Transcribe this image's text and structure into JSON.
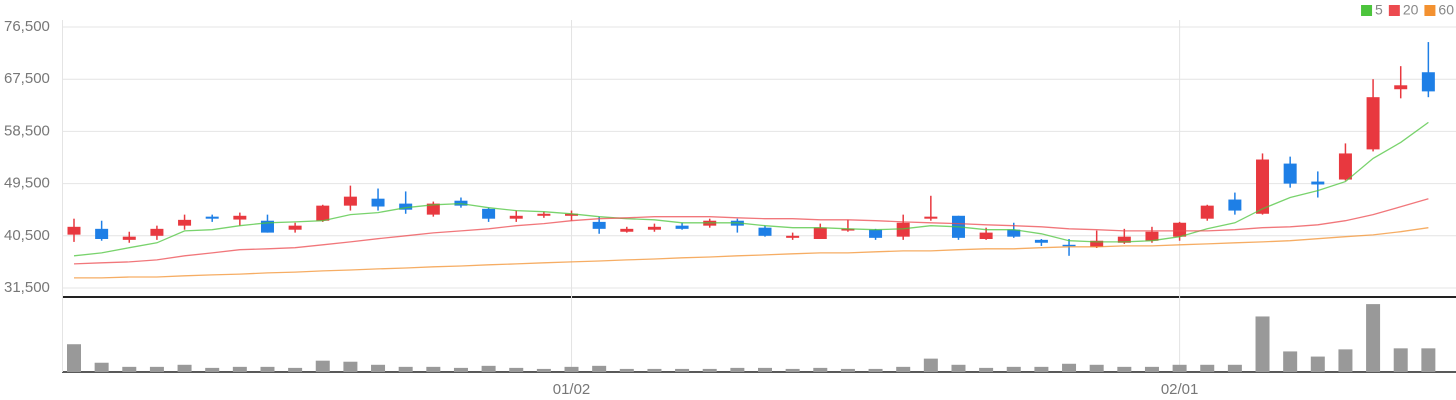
{
  "chart_data": {
    "type": "candlestick",
    "categories": [
      null,
      null,
      null,
      null,
      null,
      null,
      null,
      null,
      null,
      null,
      null,
      null,
      null,
      null,
      null,
      null,
      null,
      null,
      "01/02",
      null,
      null,
      null,
      null,
      null,
      null,
      null,
      null,
      null,
      null,
      null,
      null,
      null,
      null,
      null,
      null,
      null,
      null,
      null,
      null,
      null,
      "02/01",
      null,
      null,
      null,
      null,
      null,
      null,
      null,
      null,
      null
    ],
    "open": [
      40700,
      41700,
      39800,
      40500,
      42250,
      43800,
      43300,
      43100,
      41550,
      43100,
      45700,
      46900,
      46050,
      44150,
      46550,
      45150,
      43450,
      43950,
      43950,
      42900,
      41200,
      41550,
      42250,
      42250,
      43100,
      41900,
      40150,
      39950,
      41400,
      41550,
      40350,
      43450,
      43950,
      39950,
      41550,
      39800,
      38950,
      38600,
      39300,
      39650,
      40350,
      43450,
      46750,
      44300,
      52950,
      49850,
      50200,
      55400,
      65770,
      68700
    ],
    "high": [
      43450,
      43100,
      41200,
      42250,
      44150,
      44150,
      44500,
      44150,
      42750,
      45850,
      49150,
      48650,
      48150,
      46400,
      47100,
      45350,
      44850,
      44650,
      44850,
      43800,
      42050,
      42600,
      42750,
      43450,
      43450,
      42250,
      41050,
      42600,
      43250,
      41700,
      44150,
      47400,
      43950,
      41900,
      42750,
      39950,
      39950,
      41400,
      41700,
      42050,
      42900,
      45850,
      47950,
      54700,
      54150,
      51600,
      56430,
      67500,
      69750,
      73900
    ],
    "low": [
      39450,
      39650,
      39300,
      39800,
      41550,
      42900,
      42250,
      41050,
      41050,
      42900,
      44850,
      44850,
      44300,
      43800,
      45350,
      42900,
      42900,
      43600,
      43100,
      40850,
      41050,
      41200,
      41550,
      41900,
      41050,
      40350,
      39800,
      39950,
      41200,
      39800,
      39800,
      43100,
      39800,
      39800,
      40150,
      38750,
      37050,
      38400,
      39100,
      39300,
      39650,
      43100,
      44150,
      44150,
      48800,
      47100,
      50020,
      55050,
      64200,
      64400
    ],
    "close": [
      42050,
      39950,
      40350,
      41700,
      43250,
      43450,
      43950,
      41050,
      42250,
      45700,
      47250,
      45550,
      45000,
      46050,
      45700,
      43450,
      43950,
      44300,
      44300,
      41700,
      41700,
      42050,
      41700,
      43100,
      42250,
      40500,
      40500,
      41900,
      41700,
      40150,
      42750,
      43800,
      40150,
      41050,
      40350,
      39300,
      38750,
      39650,
      40350,
      41200,
      42750,
      45700,
      44850,
      53650,
      49500,
      49350,
      54700,
      64400,
      66450,
      65400
    ],
    "up_color": "#e8383f",
    "down_color": "#1e7fe6",
    "series": [
      {
        "name": "5",
        "color": "#4cc43c",
        "values": [
          37050,
          37550,
          38450,
          39300,
          41350,
          41550,
          42250,
          42750,
          42900,
          43100,
          44150,
          44500,
          45350,
          45850,
          46050,
          45350,
          44850,
          44650,
          44300,
          43800,
          43450,
          43250,
          42750,
          42750,
          42750,
          42250,
          41900,
          41900,
          41700,
          41550,
          41700,
          42250,
          42050,
          41550,
          41550,
          40850,
          39650,
          39450,
          39450,
          39650,
          40350,
          41700,
          42750,
          45150,
          47100,
          48300,
          49850,
          53850,
          56600,
          60050
        ]
      },
      {
        "name": "20",
        "color": "#ec4a4f",
        "values": [
          35650,
          35850,
          36000,
          36350,
          37050,
          37550,
          38100,
          38250,
          38450,
          38950,
          39450,
          40000,
          40500,
          41000,
          41350,
          41700,
          42250,
          42600,
          43100,
          43450,
          43600,
          43800,
          43800,
          43800,
          43600,
          43450,
          43450,
          43250,
          43250,
          43100,
          42900,
          42750,
          42600,
          42400,
          42250,
          42050,
          41700,
          41550,
          41350,
          41350,
          41350,
          41350,
          41550,
          41900,
          42050,
          42400,
          43100,
          44150,
          45500,
          46900
        ]
      },
      {
        "name": "60",
        "color": "#f39130",
        "values": [
          33250,
          33250,
          33400,
          33400,
          33600,
          33750,
          33900,
          34100,
          34250,
          34450,
          34600,
          34800,
          34950,
          35150,
          35300,
          35500,
          35650,
          35850,
          36000,
          36150,
          36350,
          36500,
          36700,
          36850,
          37050,
          37200,
          37400,
          37550,
          37550,
          37750,
          37900,
          37900,
          38100,
          38250,
          38250,
          38450,
          38600,
          38600,
          38750,
          38750,
          38950,
          39100,
          39300,
          39450,
          39650,
          40000,
          40350,
          40650,
          41200,
          41900
        ]
      }
    ],
    "volume": [
      27,
      9,
      5,
      5,
      7,
      4,
      5,
      5,
      4,
      11,
      10,
      7,
      5,
      5,
      4,
      6,
      4,
      3,
      5,
      6,
      3,
      3,
      3,
      3,
      4,
      4,
      3,
      4,
      3,
      3,
      5,
      13,
      7,
      4,
      5,
      5,
      8,
      7,
      5,
      5,
      7,
      7,
      7,
      54,
      20,
      15,
      22,
      66,
      23,
      23
    ],
    "volume_color": "#999999",
    "vlim": [
      0,
      70
    ],
    "ylim": [
      31500,
      76500
    ],
    "yticks": [
      {
        "value": 31500,
        "label": "31,500"
      },
      {
        "value": 40500,
        "label": "40,500"
      },
      {
        "value": 49500,
        "label": "49,500"
      },
      {
        "value": 58500,
        "label": "58,500"
      },
      {
        "value": 67500,
        "label": "67,500"
      },
      {
        "value": 76500,
        "label": "76,500"
      }
    ],
    "grid": true,
    "legend": "top-right"
  }
}
